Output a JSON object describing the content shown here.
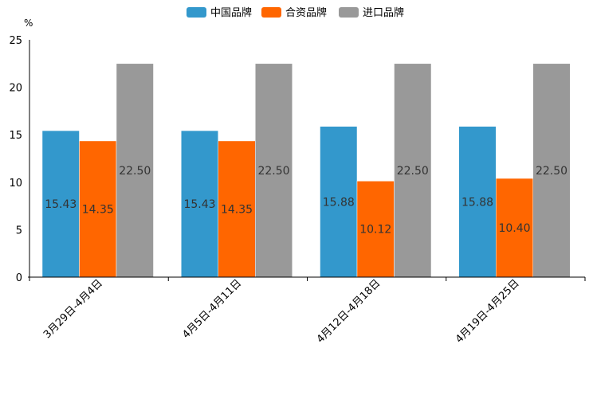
{
  "chart_data": {
    "type": "bar",
    "title": "",
    "xlabel": "",
    "ylabel": "%",
    "ylim": [
      0,
      25
    ],
    "yticks": [
      0,
      5,
      10,
      15,
      20,
      25
    ],
    "grid": false,
    "legend_position": "top-center",
    "categories": [
      "3月29日-4月4日",
      "4月5日-4月11日",
      "4月12日-4月18日",
      "4月19日-4月25日"
    ],
    "series": [
      {
        "name": "中国品牌",
        "color": "#3398cc",
        "values": [
          15.43,
          15.43,
          15.88,
          15.88
        ],
        "labels": [
          "15.43",
          "15.43",
          "15.88",
          "15.88"
        ]
      },
      {
        "name": "合资品牌",
        "color": "#ff6600",
        "values": [
          14.35,
          14.35,
          10.12,
          10.4
        ],
        "labels": [
          "14.35",
          "14.35",
          "10.12",
          "10.40"
        ]
      },
      {
        "name": "进口品牌",
        "color": "#999999",
        "values": [
          22.5,
          22.5,
          22.5,
          22.5
        ],
        "labels": [
          "22.50",
          "22.50",
          "22.50",
          "22.50"
        ]
      }
    ]
  }
}
